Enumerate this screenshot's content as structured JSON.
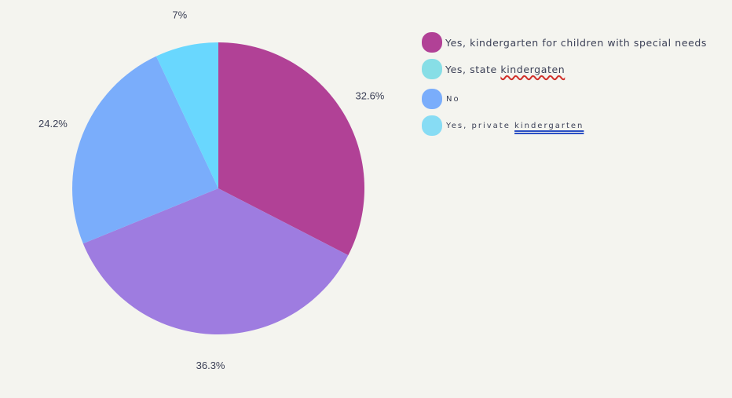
{
  "chart_data": {
    "type": "pie",
    "slices": [
      {
        "name": "Yes, kindergarten for children with special needs",
        "value": 32.6,
        "label": "32.6%",
        "color": "#b14196"
      },
      {
        "name": "",
        "value": 36.3,
        "label": "36.3%",
        "color": "#9e7ce0"
      },
      {
        "name": "",
        "value": 24.2,
        "label": "24.2%",
        "color": "#7aadfb"
      },
      {
        "name": "",
        "value": 7.0,
        "label": "7%",
        "color": "#69d7fe"
      }
    ],
    "start_angle_deg": 0,
    "direction": "clockwise"
  },
  "legend": {
    "items": [
      {
        "prefix": "Yes, kindergarten for children with special needs",
        "marked": "",
        "color": "#b14196",
        "style": "normal",
        "mark": "none"
      },
      {
        "prefix": "Yes, state ",
        "marked": "kindergaten",
        "color": "#87dee6",
        "style": "normal",
        "mark": "squiggle"
      },
      {
        "prefix": "No",
        "marked": "",
        "color": "#7aadfb",
        "style": "small",
        "mark": "none"
      },
      {
        "prefix": "Yes, private ",
        "marked": "kindergarten",
        "color": "#87dcf4",
        "style": "small",
        "mark": "double"
      }
    ]
  }
}
